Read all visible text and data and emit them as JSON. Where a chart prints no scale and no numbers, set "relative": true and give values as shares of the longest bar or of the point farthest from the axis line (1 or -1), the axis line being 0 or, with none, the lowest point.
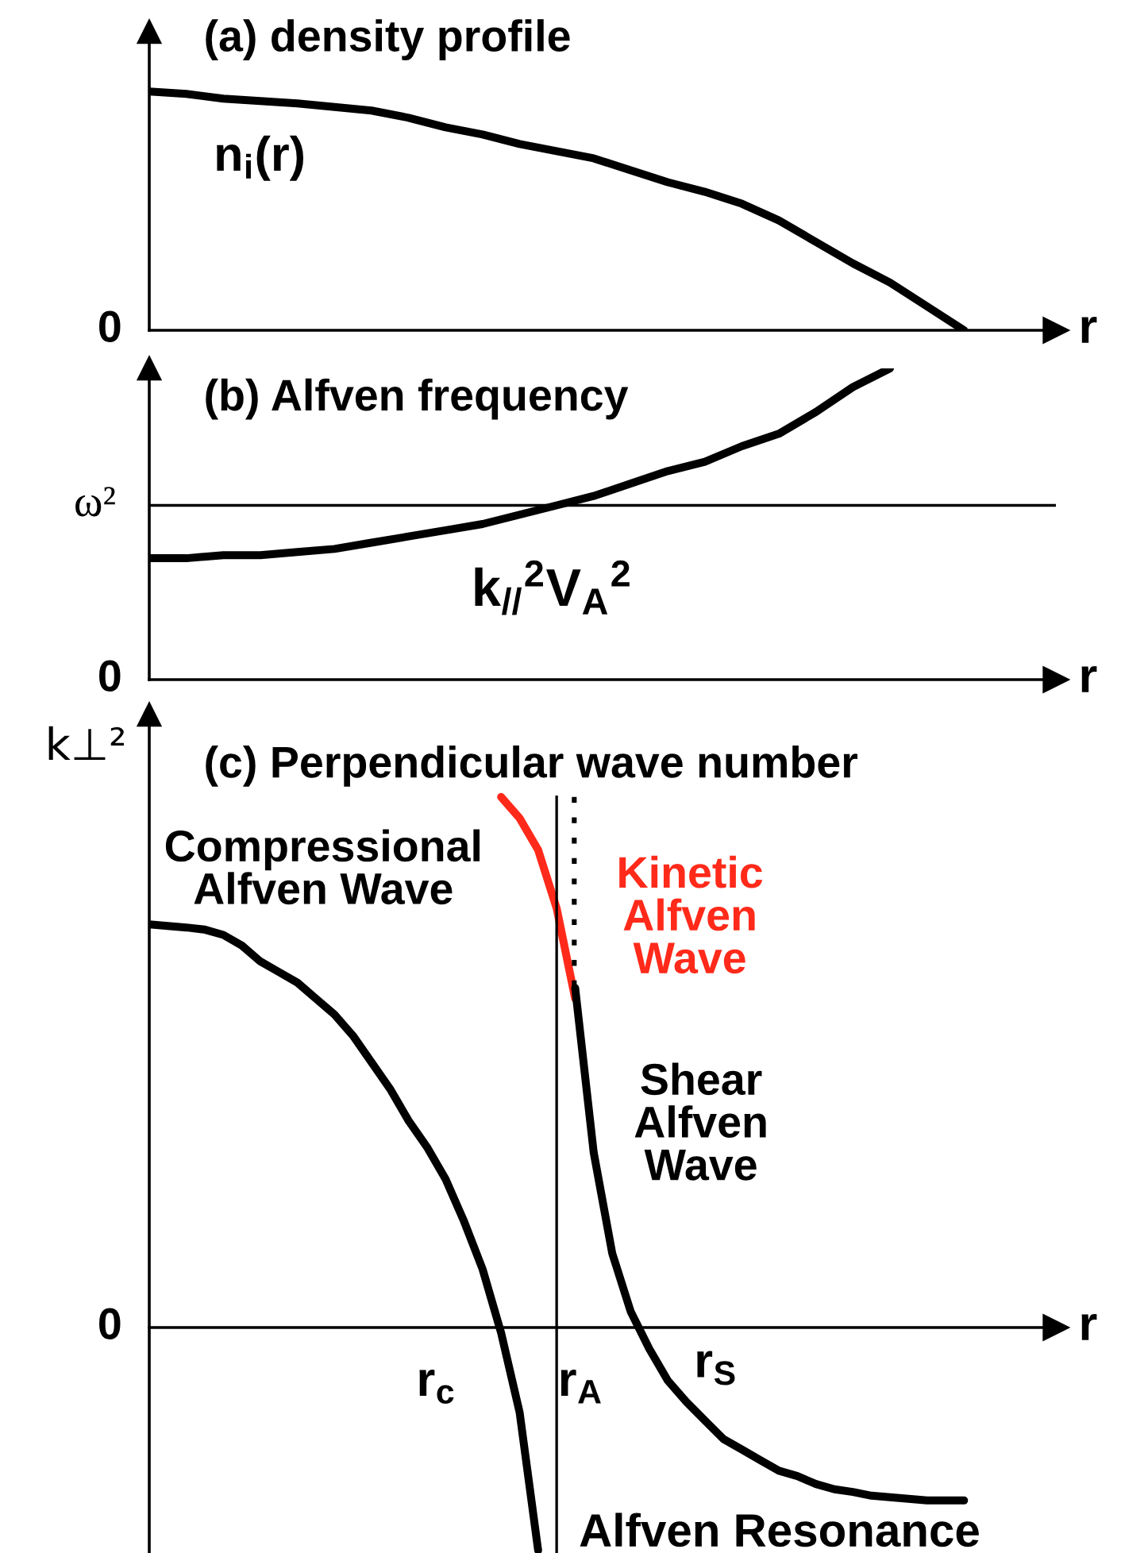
{
  "chart_data": [
    {
      "type": "line",
      "title": "(a) density profile",
      "xlabel": "r",
      "relative": true,
      "categories": [
        null,
        null,
        null,
        null,
        null,
        null,
        null,
        null,
        null,
        null,
        null,
        null,
        null,
        null,
        null,
        null,
        null,
        null,
        null,
        null,
        null,
        null,
        null,
        null,
        null
      ],
      "series": [
        {
          "name": "n$_{i}$(r)",
          "color": "#000000",
          "values": [
            1.0,
            0.99,
            0.97,
            0.96,
            0.95,
            0.935,
            0.92,
            0.89,
            0.85,
            0.82,
            0.78,
            0.75,
            0.72,
            0.67,
            0.62,
            0.58,
            0.53,
            0.46,
            0.37,
            0.28,
            0.2,
            0.1,
            0,
            null,
            null
          ]
        }
      ],
      "annotations": [
        "0"
      ]
    },
    {
      "type": "line",
      "title": "(b) Alfven frequency",
      "xlabel": "r",
      "relative": true,
      "categories": [
        null,
        null,
        null,
        null,
        null,
        null,
        null,
        null,
        null,
        null,
        null,
        null,
        null,
        null,
        null,
        null,
        null,
        null,
        null,
        null,
        null,
        null,
        null,
        null,
        null
      ],
      "series": [
        {
          "name": "k$_{//}$$^{2}$V$_{A}$$^{2}$",
          "color": "#000000",
          "values": [
            0.39,
            0.39,
            0.4,
            0.4,
            0.41,
            0.42,
            0.44,
            0.46,
            0.48,
            0.5,
            0.53,
            0.56,
            0.59,
            0.63,
            0.67,
            0.7,
            0.75,
            0.79,
            0.86,
            0.94,
            1.0,
            null,
            null,
            null,
            null
          ]
        }
      ],
      "ref_lines": [
        {
          "axis": "y",
          "value": 0.56,
          "label": "ω²",
          "color": "#000000"
        }
      ],
      "annotations": [
        "0"
      ]
    },
    {
      "type": "line",
      "title": "(c) Perpendicular wave number",
      "xlabel": "r",
      "ylabel": "k⊥²",
      "relative": true,
      "categories": [
        null,
        null,
        null,
        null,
        null,
        null,
        null,
        null,
        null,
        null,
        null,
        null,
        null,
        null,
        null,
        null,
        null,
        null,
        null,
        null,
        null,
        null,
        null,
        null,
        null,
        null,
        null,
        null,
        null,
        null,
        null,
        null,
        null,
        null,
        null,
        null,
        null,
        null,
        null,
        null,
        null,
        null,
        null,
        null,
        null,
        null,
        null,
        null,
        null
      ],
      "series": [
        {
          "name": "Compressional\nAlfven Wave",
          "color": "#000000",
          "values": [
            0.76,
            0.757,
            0.754,
            0.75,
            0.74,
            0.72,
            0.69,
            0.67,
            0.65,
            0.62,
            0.59,
            0.55,
            0.5,
            0.45,
            0.39,
            0.34,
            0.28,
            0.2,
            0.11,
            -0.01,
            -0.16,
            -0.42,
            null,
            null,
            null,
            null,
            null,
            null,
            null,
            null,
            null,
            null,
            null,
            null,
            null,
            null,
            null,
            null,
            null,
            null,
            null,
            null,
            null,
            null,
            null,
            null,
            null,
            null,
            null
          ]
        },
        {
          "name": "Kinetic\nAlfven\nWave",
          "color": "#ff2a1a",
          "values": [
            null,
            null,
            null,
            null,
            null,
            null,
            null,
            null,
            null,
            null,
            null,
            null,
            null,
            null,
            null,
            null,
            null,
            null,
            null,
            1.0,
            0.96,
            0.9,
            0.79,
            0.62,
            null,
            null,
            null,
            null,
            null,
            null,
            null,
            null,
            null,
            null,
            null,
            null,
            null,
            null,
            null,
            null,
            null,
            null,
            null,
            null,
            null,
            null,
            null,
            null,
            null
          ]
        },
        {
          "name": "Shear\nAlfven\nWave",
          "color": "#000000",
          "values": [
            null,
            null,
            null,
            null,
            null,
            null,
            null,
            null,
            null,
            null,
            null,
            null,
            null,
            null,
            null,
            null,
            null,
            null,
            null,
            null,
            null,
            null,
            null,
            0.64,
            0.33,
            0.14,
            0.03,
            -0.04,
            -0.1,
            -0.14,
            -0.175,
            -0.21,
            -0.23,
            -0.25,
            -0.27,
            -0.28,
            -0.295,
            -0.305,
            -0.31,
            -0.317,
            -0.32,
            -0.323,
            -0.326,
            -0.326,
            -0.326,
            null,
            null,
            null,
            null
          ]
        }
      ],
      "annotations": [
        "0",
        "r$_{c}$",
        "r$_{S}$",
        "Alfven Resonance",
        "r$_{A}$"
      ]
    }
  ]
}
